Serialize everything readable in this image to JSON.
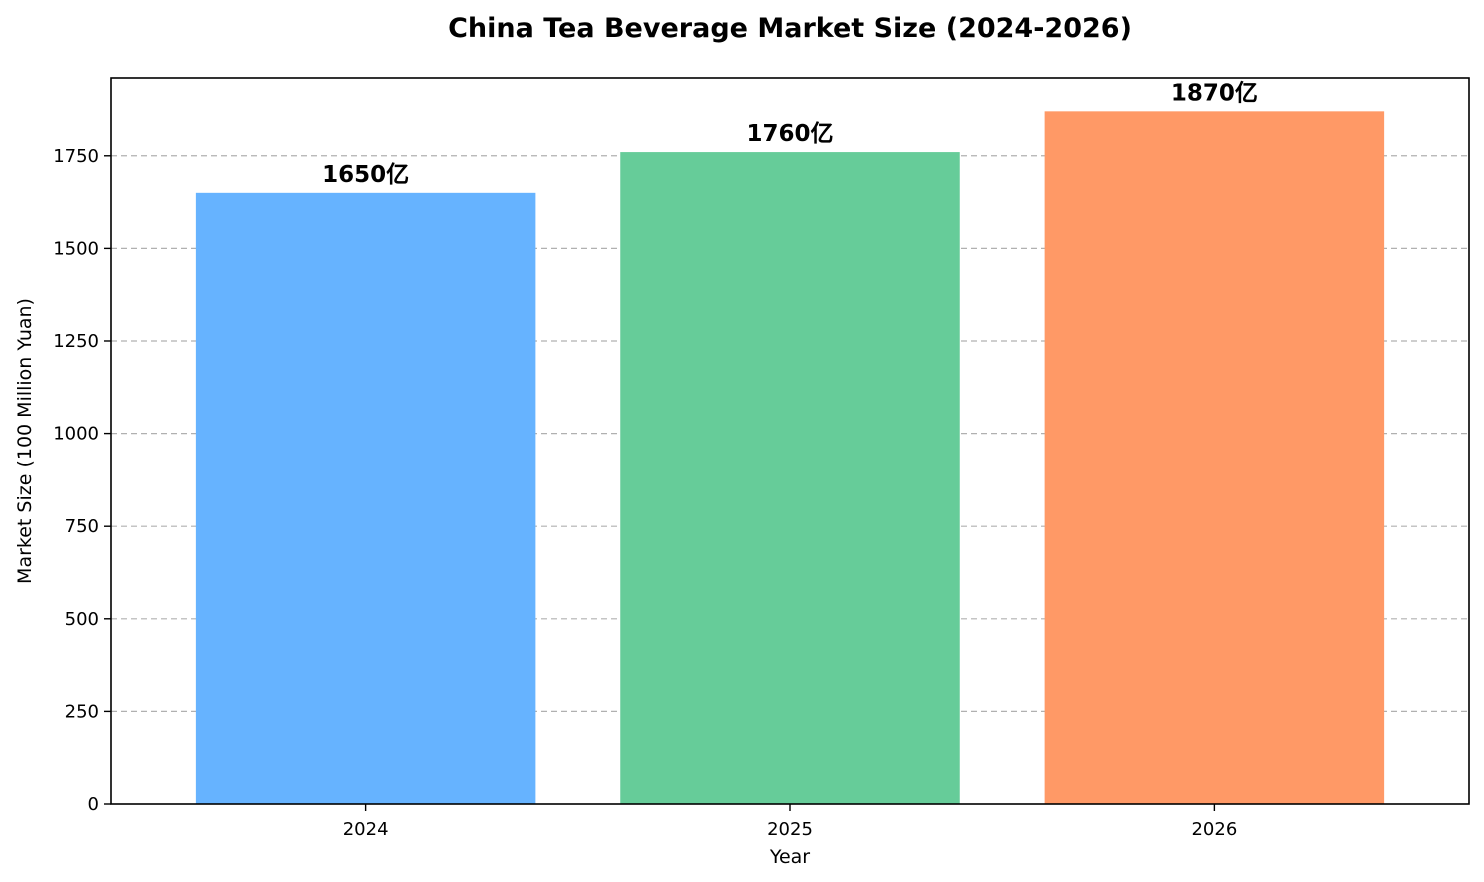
{
  "chart_data": {
    "type": "bar",
    "title": "China Tea Beverage Market Size (2024-2026)",
    "xlabel": "Year",
    "ylabel": "Market Size (100 Million Yuan)",
    "categories": [
      "2024",
      "2025",
      "2026"
    ],
    "values": [
      1650,
      1760,
      1870
    ],
    "data_labels": [
      "1650亿",
      "1760亿",
      "1870亿"
    ],
    "colors": [
      "#66b3ff",
      "#66cc99",
      "#ff9966"
    ],
    "ylim": [
      0,
      1960
    ],
    "yticks": [
      0,
      250,
      500,
      750,
      1000,
      1250,
      1500,
      1750
    ],
    "grid": "horizontal-dashed",
    "legend": "none"
  }
}
